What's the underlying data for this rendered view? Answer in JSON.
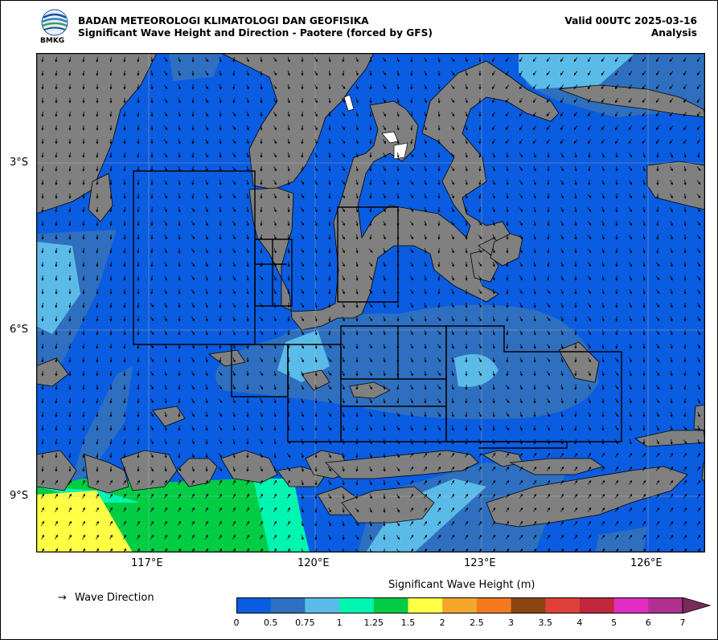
{
  "header": {
    "org": "BADAN METEOROLOGI KLIMATOLOGI DAN GEOFISIKA",
    "product": "Significant Wave Height and Direction - Paotere (forced by GFS)",
    "valid": "Valid 00UTC 2025-03-16",
    "type": "Analysis",
    "logo_text": "BMKG"
  },
  "map": {
    "lat_labels": [
      "3°S",
      "6°S",
      "9°S"
    ],
    "lon_labels": [
      "117°E",
      "120°E",
      "123°E",
      "126°E"
    ],
    "land_color": "#808080",
    "sea_color": "#0a5ce0"
  },
  "legend": {
    "direction_label": "Wave Direction",
    "direction_symbol": "→",
    "colorbar_title": "Significant Wave Height (m)",
    "ticks": [
      "0",
      "0.5",
      "0.75",
      "1",
      "1.25",
      "1.5",
      "2",
      "2.5",
      "3",
      "3.5",
      "4",
      "5",
      "6",
      "7"
    ],
    "colors": [
      "#0a5ce0",
      "#2f6fbf",
      "#5bbbe8",
      "#00f5b0",
      "#00cc44",
      "#ffff44",
      "#f4a62a",
      "#f57a1f",
      "#8b4513",
      "#e0403a",
      "#c0273a",
      "#e02cc0",
      "#b03090"
    ],
    "extend_color": "#7a2a5a"
  }
}
